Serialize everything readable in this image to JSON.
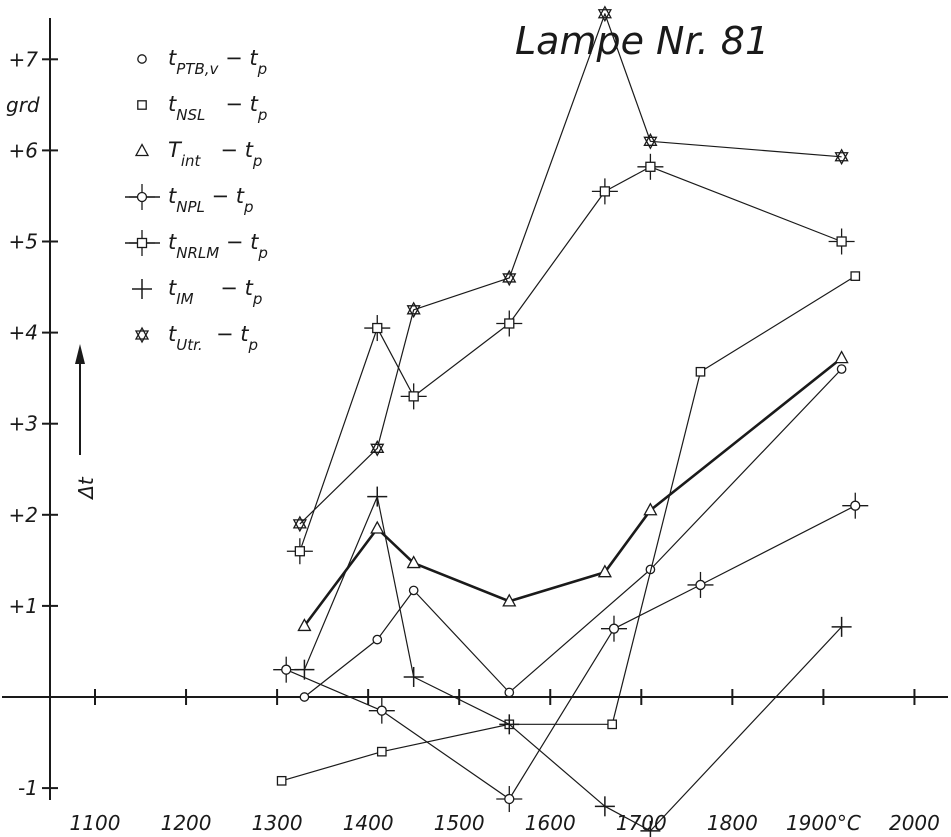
{
  "chart_data": {
    "type": "line",
    "title": "Lampe Nr. 81",
    "ylabel": "Δt",
    "yunit": "grd",
    "xlim": [
      1050,
      2000
    ],
    "ylim": [
      -1.2,
      7.6
    ],
    "x_ticks": [
      1100,
      1200,
      1300,
      1400,
      1500,
      1600,
      1700,
      1800,
      1900,
      2000
    ],
    "x_tick_labels": [
      "1100",
      "1200",
      "1300",
      "1400",
      "1500",
      "1600",
      "1700",
      "1800",
      "1900°C",
      "2000"
    ],
    "y_ticks": [
      -1,
      1,
      2,
      3,
      4,
      5,
      6,
      7
    ],
    "y_tick_labels": [
      "-1",
      "+1",
      "+2",
      "+3",
      "+4",
      "+5",
      "+6",
      "+7"
    ],
    "grid": false,
    "legend_position": "top-left",
    "series": [
      {
        "name": "tPTB,v − tp",
        "legend": {
          "t": "t",
          "sub": "PTB,v",
          "rest": " − t",
          "sub2": "p"
        },
        "marker": "circle",
        "line_width": 1.2,
        "points": [
          [
            1330,
            0.0
          ],
          [
            1410,
            0.63
          ],
          [
            1450,
            1.17
          ],
          [
            1555,
            0.05
          ],
          [
            1710,
            1.4
          ],
          [
            1920,
            3.6
          ]
        ]
      },
      {
        "name": "tNSL − tp",
        "legend": {
          "t": "t",
          "sub": "NSL",
          "rest": "   − t",
          "sub2": "p"
        },
        "marker": "square",
        "line_width": 1.2,
        "points": [
          [
            1305,
            -0.92
          ],
          [
            1415,
            -0.6
          ],
          [
            1555,
            -0.3
          ],
          [
            1668,
            -0.3
          ],
          [
            1765,
            3.57
          ],
          [
            1935,
            4.62
          ]
        ]
      },
      {
        "name": "Tint − tp",
        "legend": {
          "t": "T",
          "sub": "int",
          "rest": "   − t",
          "sub2": "p"
        },
        "marker": "triangle",
        "line_width": 2.6,
        "points": [
          [
            1330,
            0.78
          ],
          [
            1410,
            1.85
          ],
          [
            1450,
            1.47
          ],
          [
            1555,
            1.05
          ],
          [
            1660,
            1.37
          ],
          [
            1710,
            2.05
          ],
          [
            1920,
            3.72
          ]
        ]
      },
      {
        "name": "tNPL − tp",
        "legend": {
          "t": "t",
          "sub": "NPL",
          "rest": " − t",
          "sub2": "p"
        },
        "marker": "circle-cross",
        "line_width": 1.2,
        "points": [
          [
            1310,
            0.3
          ],
          [
            1415,
            -0.15
          ],
          [
            1555,
            -1.12
          ],
          [
            1670,
            0.75
          ],
          [
            1765,
            1.23
          ],
          [
            1935,
            2.1
          ]
        ]
      },
      {
        "name": "tNRLM − tp",
        "legend": {
          "t": "t",
          "sub": "NRLM",
          "rest": " − t",
          "sub2": "p"
        },
        "marker": "square-cross",
        "line_width": 1.2,
        "points": [
          [
            1325,
            1.6
          ],
          [
            1410,
            4.05
          ],
          [
            1450,
            3.3
          ],
          [
            1555,
            4.1
          ],
          [
            1660,
            5.55
          ],
          [
            1710,
            5.82
          ],
          [
            1920,
            5.0
          ]
        ]
      },
      {
        "name": "tIM − tp",
        "legend": {
          "t": "t",
          "sub": "IM",
          "rest": "    − t",
          "sub2": "p"
        },
        "marker": "plus",
        "line_width": 1.2,
        "points": [
          [
            1330,
            0.3
          ],
          [
            1410,
            2.2
          ],
          [
            1450,
            0.22
          ],
          [
            1555,
            -0.3
          ],
          [
            1660,
            -1.2
          ],
          [
            1710,
            -1.47
          ],
          [
            1920,
            0.77
          ]
        ]
      },
      {
        "name": "tUtr. − tp",
        "legend": {
          "t": "t",
          "sub": "Utr.",
          "rest": "  − t",
          "sub2": "p"
        },
        "marker": "star",
        "line_width": 1.2,
        "points": [
          [
            1325,
            1.9
          ],
          [
            1410,
            2.73
          ],
          [
            1450,
            4.25
          ],
          [
            1555,
            4.6
          ],
          [
            1660,
            7.5
          ],
          [
            1710,
            6.1
          ],
          [
            1920,
            5.93
          ]
        ]
      }
    ]
  }
}
